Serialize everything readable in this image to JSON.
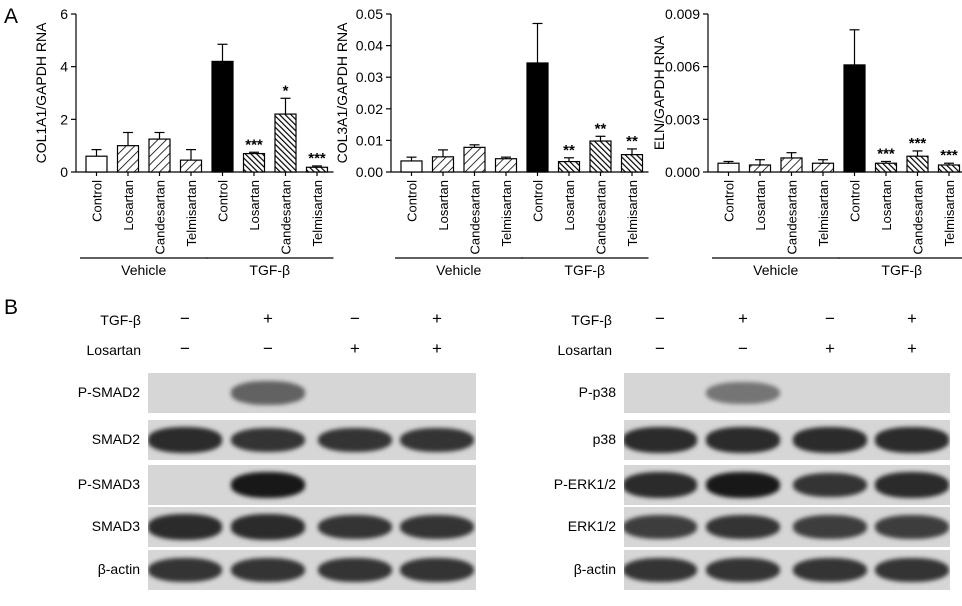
{
  "panel_labels": {
    "a": "A",
    "b": "B"
  },
  "chart_data": [
    {
      "type": "bar",
      "ylabel": "COL1A1/GAPDH RNA",
      "ylim": [
        0,
        6
      ],
      "yticks": [
        "0",
        "2",
        "4",
        "6"
      ],
      "categories": [
        "Control",
        "Losartan",
        "Candesartan",
        "Telmisartan",
        "Control",
        "Losartan",
        "Candesartan",
        "Telmisartan"
      ],
      "values": [
        0.6,
        1.0,
        1.25,
        0.45,
        4.2,
        0.7,
        2.2,
        0.18
      ],
      "errors": [
        0.25,
        0.5,
        0.25,
        0.4,
        0.65,
        0.05,
        0.6,
        0.05
      ],
      "significance": [
        "",
        "",
        "",
        "",
        "",
        "***",
        "*",
        "***"
      ],
      "groups": [
        {
          "label": "Vehicle",
          "from": 0,
          "to": 3
        },
        {
          "label": "TGF-β",
          "from": 4,
          "to": 7
        }
      ],
      "fills": [
        "white",
        "hatch-light",
        "hatch-light",
        "hatch-light",
        "black",
        "hatch-dense",
        "hatch-dense",
        "hatch-dense"
      ]
    },
    {
      "type": "bar",
      "ylabel": "COL3A1/GAPDH RNA",
      "ylim": [
        0,
        0.05
      ],
      "yticks": [
        "0.00",
        "0.01",
        "0.02",
        "0.03",
        "0.04",
        "0.05"
      ],
      "categories": [
        "Control",
        "Losartan",
        "Candesartan",
        "Telmisartan",
        "Control",
        "Losartan",
        "Candesartan",
        "Telmisartan"
      ],
      "values": [
        0.0035,
        0.0048,
        0.0078,
        0.0042,
        0.0345,
        0.0033,
        0.0098,
        0.0055
      ],
      "errors": [
        0.0012,
        0.0022,
        0.0008,
        0.0005,
        0.0125,
        0.0012,
        0.0015,
        0.0018
      ],
      "significance": [
        "",
        "",
        "",
        "",
        "",
        "**",
        "**",
        "**"
      ],
      "groups": [
        {
          "label": "Vehicle",
          "from": 0,
          "to": 3
        },
        {
          "label": "TGF-β",
          "from": 4,
          "to": 7
        }
      ],
      "fills": [
        "white",
        "hatch-light",
        "hatch-light",
        "hatch-light",
        "black",
        "hatch-dense",
        "hatch-dense",
        "hatch-dense"
      ]
    },
    {
      "type": "bar",
      "ylabel": "ELN/GAPDH RNA",
      "ylim": [
        0,
        0.009
      ],
      "yticks": [
        "0.000",
        "0.003",
        "0.006",
        "0.009"
      ],
      "categories": [
        "Control",
        "Losartan",
        "Candesartan",
        "Telmisartan",
        "Control",
        "Losartan",
        "Candesartan",
        "Telmisartan"
      ],
      "values": [
        0.0005,
        0.0004,
        0.0008,
        0.0005,
        0.0061,
        0.0005,
        0.0009,
        0.0004
      ],
      "errors": [
        0.0001,
        0.0003,
        0.0003,
        0.0002,
        0.002,
        0.0001,
        0.0003,
        0.0001
      ],
      "significance": [
        "",
        "",
        "",
        "",
        "",
        "***",
        "***",
        "***"
      ],
      "groups": [
        {
          "label": "Vehicle",
          "from": 0,
          "to": 3
        },
        {
          "label": "TGF-β",
          "from": 4,
          "to": 7
        }
      ],
      "fills": [
        "white",
        "hatch-light",
        "hatch-light",
        "hatch-light",
        "black",
        "hatch-dense",
        "hatch-dense",
        "hatch-dense"
      ]
    }
  ],
  "western_blots": [
    {
      "treatments": [
        {
          "label": "TGF-β",
          "signs": [
            "−",
            "+",
            "−",
            "+"
          ]
        },
        {
          "label": "Losartan",
          "signs": [
            "−",
            "−",
            "+",
            "+"
          ]
        }
      ],
      "rows": [
        {
          "label": "P-SMAD2",
          "bands": [
            0.0,
            0.55,
            0.0,
            0.0
          ]
        },
        {
          "label": "SMAD2",
          "bands": [
            0.85,
            0.8,
            0.8,
            0.8
          ]
        },
        {
          "label": "P-SMAD3",
          "bands": [
            0.0,
            0.95,
            0.0,
            0.0
          ]
        },
        {
          "label": "SMAD3",
          "bands": [
            0.85,
            0.85,
            0.8,
            0.8
          ]
        },
        {
          "label": "β-actin",
          "bands": [
            0.8,
            0.8,
            0.8,
            0.8
          ]
        }
      ]
    },
    {
      "treatments": [
        {
          "label": "TGF-β",
          "signs": [
            "−",
            "+",
            "−",
            "+"
          ]
        },
        {
          "label": "Losartan",
          "signs": [
            "−",
            "−",
            "+",
            "+"
          ]
        }
      ],
      "rows": [
        {
          "label": "P-p38",
          "bands": [
            0.0,
            0.45,
            0.0,
            0.0
          ]
        },
        {
          "label": "p38",
          "bands": [
            0.85,
            0.85,
            0.85,
            0.85
          ]
        },
        {
          "label": "P-ERK1/2",
          "bands": [
            0.85,
            0.95,
            0.8,
            0.85
          ]
        },
        {
          "label": "ERK1/2",
          "bands": [
            0.75,
            0.8,
            0.75,
            0.75
          ]
        },
        {
          "label": "β-actin",
          "bands": [
            0.8,
            0.8,
            0.8,
            0.8
          ]
        }
      ]
    }
  ]
}
